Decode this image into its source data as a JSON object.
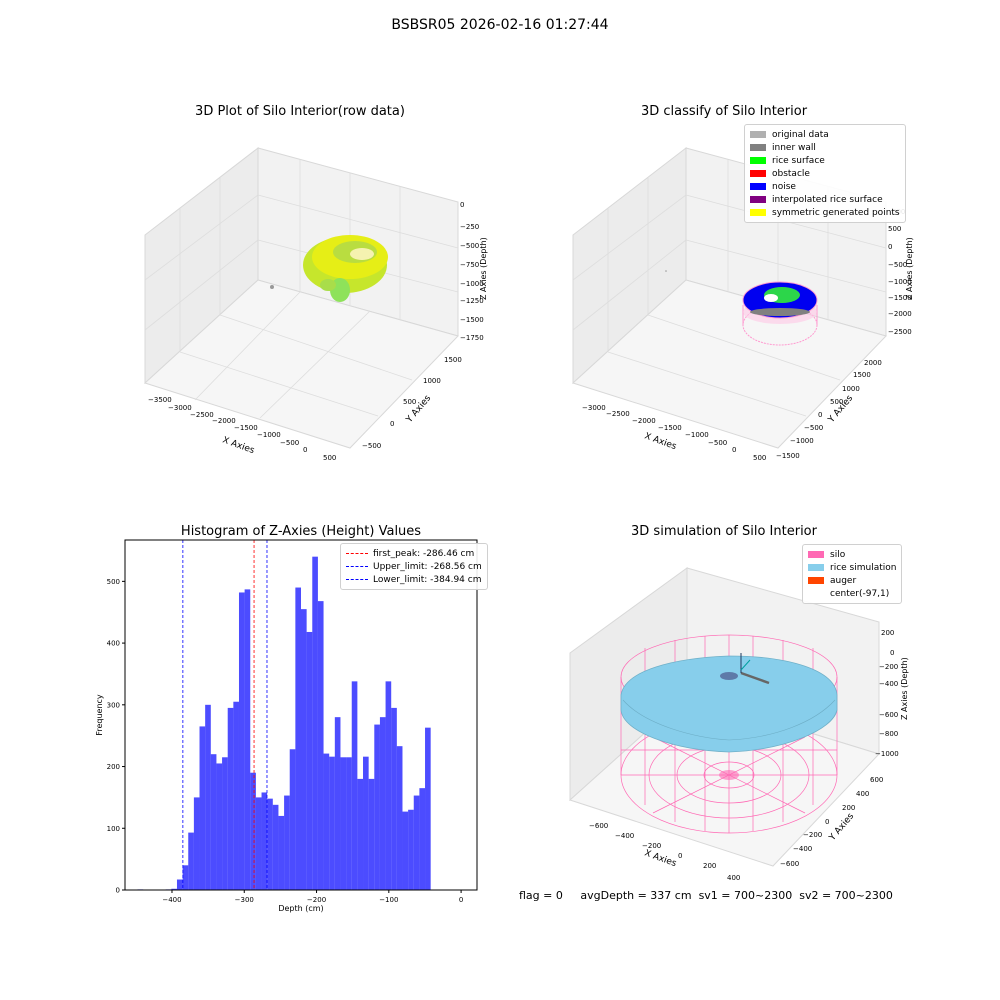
{
  "suptitle": "BSBSR05 2026-02-16 01:27:44",
  "footer": {
    "flag": "flag = 0",
    "avg_depth": "avgDepth = 337 cm",
    "sv1": "sv1 = 700~2300",
    "sv2": "sv2 = 700~2300"
  },
  "panel1": {
    "title": "3D Plot of Silo Interior(row data)",
    "xlabel": "X Axies",
    "ylabel": "Y Axies",
    "zlabel": "Z Axies (Depth)",
    "xticks": [
      "−3500",
      "−3000",
      "−2500",
      "−2000",
      "−1500",
      "−1000",
      "−500",
      "0",
      "500"
    ],
    "yticks": [
      "−500",
      "0",
      "500",
      "1000",
      "1500"
    ],
    "zticks": [
      "0",
      "−250",
      "−500",
      "−750",
      "−1000",
      "−1250",
      "−1500",
      "−1750"
    ]
  },
  "panel2": {
    "title": "3D classify of Silo Interior",
    "xlabel": "X Axies",
    "ylabel": "Y Axies",
    "zlabel": "Z Axies (Depth)",
    "xticks": [
      "−3000",
      "−2500",
      "−2000",
      "−1500",
      "−1000",
      "−500",
      "0",
      "500"
    ],
    "yticks": [
      "−1500",
      "−1000",
      "−500",
      "0",
      "500",
      "1000",
      "1500",
      "2000"
    ],
    "zticks": [
      "500",
      "0",
      "−500",
      "−1000",
      "−1500",
      "−2000",
      "−2500"
    ],
    "ztick_partial": "000",
    "legend": [
      {
        "label": "original data",
        "color": "#b0b0b0"
      },
      {
        "label": "inner wall",
        "color": "#808080"
      },
      {
        "label": "rice surface",
        "color": "#00ff00"
      },
      {
        "label": "obstacle",
        "color": "#ff0000"
      },
      {
        "label": "noise",
        "color": "#0000ff"
      },
      {
        "label": "interpolated rice surface",
        "color": "#800080"
      },
      {
        "label": "symmetric generated points",
        "color": "#ffff00"
      }
    ]
  },
  "panel3": {
    "title": "Histogram of Z-Axies (Height) Values",
    "legend": [
      {
        "label": "first_peak: -286.46 cm",
        "color": "#ff0000"
      },
      {
        "label": "Upper_limit: -268.56 cm",
        "color": "#0000ff"
      },
      {
        "label": "Lower_limit: -384.94 cm",
        "color": "#0000ff"
      }
    ]
  },
  "panel4": {
    "title": "3D simulation of Silo Interior",
    "xlabel": "X Axies",
    "ylabel": "Y Axies",
    "zlabel": "Z Axies (Depth)",
    "xticks": [
      "−600",
      "−400",
      "−200",
      "0",
      "200",
      "400"
    ],
    "yticks": [
      "−600",
      "−400",
      "−200",
      "0",
      "200",
      "400",
      "600"
    ],
    "zticks": [
      "200",
      "0",
      "−200",
      "−400",
      "−600",
      "−800",
      "−1000"
    ],
    "legend": [
      {
        "label": "silo",
        "color": "#ff69b4"
      },
      {
        "label": "rice simulation",
        "color": "#87ceeb"
      },
      {
        "label": "auger",
        "color": "#ff4500"
      },
      {
        "label": "center(-97,1)",
        "color": "#ffffff"
      }
    ]
  },
  "chart_data": {
    "type": "bar",
    "title": "Histogram of Z-Axies (Height) Values",
    "xlabel": "Depth (cm)",
    "ylabel": "Frequency",
    "xlim": [
      -465,
      22
    ],
    "ylim": [
      0,
      567
    ],
    "xticks": [
      -400,
      -300,
      -200,
      -100,
      0
    ],
    "yticks": [
      0,
      100,
      200,
      300,
      400,
      500
    ],
    "bar_color": "#0000ff",
    "bin_width": 7.8,
    "bin_starts": [
      -447.7,
      -439.9,
      -432.1,
      -424.3,
      -416.5,
      -408.7,
      -400.9,
      -393.1,
      -385.3,
      -377.5,
      -369.7,
      -361.9,
      -354.1,
      -346.3,
      -338.5,
      -330.7,
      -322.9,
      -315.1,
      -307.3,
      -299.5,
      -291.7,
      -283.9,
      -276.1,
      -268.3,
      -260.5,
      -252.7,
      -244.9,
      -237.1,
      -229.3,
      -221.5,
      -213.7,
      -205.9,
      -198.1,
      -190.3,
      -182.5,
      -174.7,
      -166.9,
      -159.1,
      -151.3,
      -143.5,
      -135.7,
      -127.9,
      -120.1,
      -112.3,
      -104.5,
      -96.7,
      -88.9,
      -81.1,
      -73.3,
      -65.5,
      -57.7,
      -49.9,
      -42.1,
      -34.3,
      -26.5,
      -18.7,
      -10.9,
      -3.1
    ],
    "values": [
      1,
      0,
      0,
      0,
      0,
      1,
      2,
      17,
      40,
      93,
      150,
      265,
      300,
      220,
      205,
      215,
      295,
      305,
      482,
      487,
      190,
      150,
      158,
      148,
      138,
      120,
      153,
      228,
      490,
      455,
      418,
      540,
      468,
      221,
      216,
      280,
      215,
      215,
      338,
      180,
      216,
      180,
      268,
      280,
      338,
      295,
      233,
      127,
      130,
      153,
      165,
      263,
      0,
      0,
      0,
      0,
      0,
      0
    ],
    "reference_lines": [
      {
        "label": "first_peak: -286.46 cm",
        "x": -286.46,
        "color": "#ff0000"
      },
      {
        "label": "Upper_limit: -268.56 cm",
        "x": -268.56,
        "color": "#0000ff"
      },
      {
        "label": "Lower_limit: -384.94 cm",
        "x": -384.94,
        "color": "#0000ff"
      }
    ],
    "legend_position": "upper right"
  }
}
